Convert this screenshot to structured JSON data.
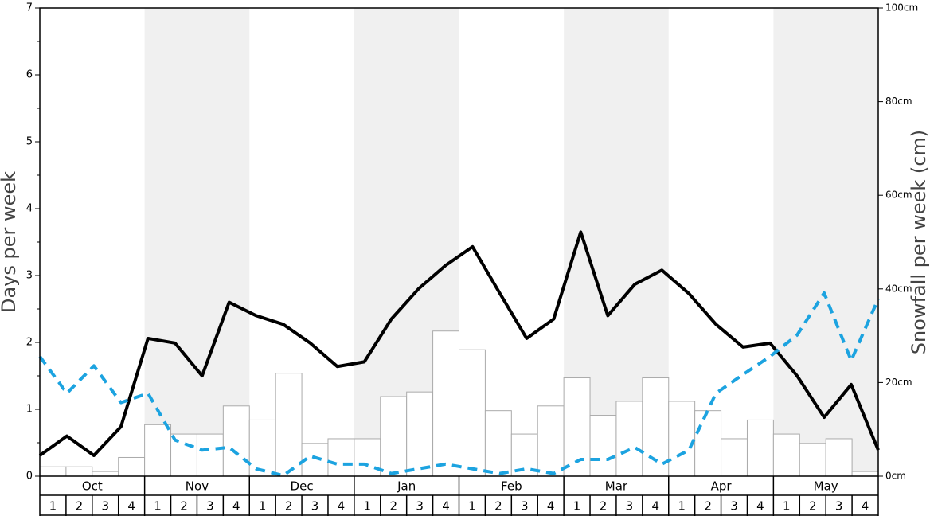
{
  "chart_data": {
    "type": "bar",
    "ylabel": "Days per week",
    "y2label": "Snowfall per week (cm)",
    "months": [
      "Oct",
      "Nov",
      "Dec",
      "Jan",
      "Feb",
      "Mar",
      "Apr",
      "May"
    ],
    "shade_color": "#f0f0f0",
    "categories": [
      "1",
      "2",
      "3",
      "4",
      "1",
      "2",
      "3",
      "4",
      "1",
      "2",
      "3",
      "4",
      "1",
      "2",
      "3",
      "4",
      "1",
      "2",
      "3",
      "4",
      "1",
      "2",
      "3",
      "4",
      "1",
      "2",
      "3",
      "4",
      "1",
      "2",
      "3",
      "4"
    ],
    "ylim": [
      0,
      7
    ],
    "yticks": [
      0,
      1,
      2,
      3,
      4,
      5,
      6,
      7
    ],
    "y2lim": [
      0,
      100
    ],
    "y2ticks": [
      {
        "value": 0,
        "label": "0cm"
      },
      {
        "value": 20,
        "label": "20cm"
      },
      {
        "value": 40,
        "label": "40cm"
      },
      {
        "value": 60,
        "label": "60cm"
      },
      {
        "value": 80,
        "label": "80cm"
      },
      {
        "value": 100,
        "label": "100cm"
      }
    ],
    "series": [
      {
        "type": "bar",
        "axis": "y2",
        "color": "#ffffff",
        "values": [
          2,
          2,
          1,
          4,
          11,
          9,
          9,
          15,
          12,
          22,
          7,
          8,
          8,
          17,
          18,
          31,
          27,
          14,
          9,
          15,
          21,
          13,
          16,
          21,
          16,
          14,
          8,
          12,
          9,
          7,
          8,
          1
        ]
      },
      {
        "type": "line",
        "color": "#000000",
        "values": [
          0.31,
          0.6,
          0.31,
          0.74,
          2.06,
          1.99,
          1.5,
          2.6,
          2.4,
          2.27,
          1.99,
          1.64,
          1.71,
          2.35,
          2.8,
          3.15,
          3.43,
          2.74,
          2.06,
          2.35,
          3.65,
          2.4,
          2.87,
          3.08,
          2.73,
          2.27,
          1.93,
          1.99,
          1.5,
          0.88,
          1.37,
          0.39
        ]
      },
      {
        "type": "line",
        "color": "#1ca3e0",
        "dashed": true,
        "values": [
          1.79,
          1.24,
          1.65,
          1.1,
          1.24,
          0.54,
          0.39,
          0.43,
          0.11,
          0.01,
          0.3,
          0.18,
          0.18,
          0.04,
          0.11,
          0.18,
          0.11,
          0.04,
          0.11,
          0.04,
          0.25,
          0.25,
          0.43,
          0.18,
          0.39,
          1.24,
          1.52,
          1.79,
          2.11,
          2.74,
          1.73,
          2.65
        ]
      }
    ]
  }
}
